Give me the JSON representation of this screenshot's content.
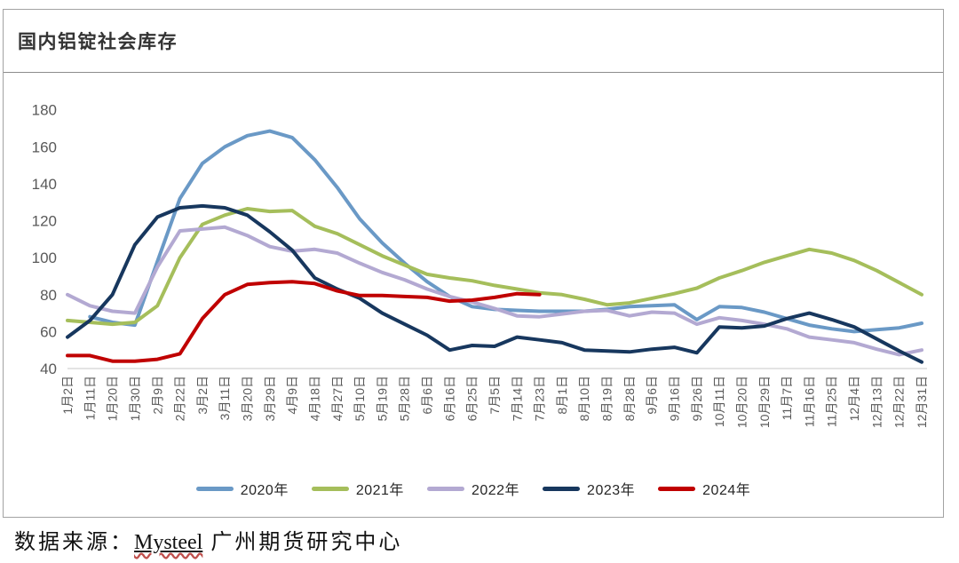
{
  "header": {
    "title": "国内铝锭社会库存"
  },
  "footer": {
    "prefix": "数据来源：",
    "source_link": "Mysteel",
    "suffix": " 广州期货研究中心"
  },
  "chart_data": {
    "type": "line",
    "title": "国内铝锭社会库存",
    "xlabel": "",
    "ylabel": "",
    "ylim": [
      40,
      180
    ],
    "y_ticks": [
      40,
      60,
      80,
      100,
      120,
      140,
      160,
      180
    ],
    "grid": "baseline-only",
    "legend_position": "bottom",
    "axis_text_color": "#595959",
    "baseline_color": "#c9c9c9",
    "categories": [
      "1月2日",
      "1月11日",
      "1月20日",
      "1月30日",
      "2月9日",
      "2月22日",
      "3月2日",
      "3月11日",
      "3月20日",
      "3月29日",
      "4月9日",
      "4月18日",
      "4月27日",
      "5月10日",
      "5月19日",
      "5月28日",
      "6月6日",
      "6月16日",
      "6月25日",
      "7月5日",
      "7月14日",
      "7月23日",
      "8月1日",
      "8月10日",
      "8月19日",
      "8月28日",
      "9月6日",
      "9月16日",
      "9月26日",
      "10月11日",
      "10月20日",
      "10月29日",
      "11月7日",
      "11月16日",
      "11月25日",
      "12月4日",
      "12月13日",
      "12月22日",
      "12月31日"
    ],
    "series": [
      {
        "name": "2020年",
        "color": "#6A99C6",
        "values": [
          null,
          68,
          65,
          63.5,
          98,
          132,
          151,
          160,
          166,
          168.5,
          165,
          153,
          138,
          121,
          108,
          97,
          87,
          79,
          73.5,
          72,
          71.5,
          71,
          71,
          71,
          72,
          73.5,
          74,
          74.5,
          66.5,
          73.5,
          73,
          70.5,
          67,
          63.5,
          61.5,
          60,
          61,
          62,
          64.5
        ]
      },
      {
        "name": "2021年",
        "color": "#A5BE5B",
        "values": [
          66,
          65,
          64,
          65,
          74,
          100,
          118,
          123,
          126.5,
          125,
          125.5,
          117,
          113,
          107,
          101,
          96,
          91,
          89,
          87.5,
          85,
          83,
          81,
          80,
          77.5,
          74.5,
          75.5,
          78,
          80.5,
          83.5,
          89,
          93,
          97.5,
          101,
          104.5,
          102.5,
          98.5,
          93,
          86.5,
          80
        ]
      },
      {
        "name": "2022年",
        "color": "#B3A9D2",
        "values": [
          80,
          74,
          71,
          70,
          95,
          114.5,
          115.5,
          116.5,
          112,
          106,
          103.5,
          104.5,
          102.5,
          97,
          92,
          88,
          83,
          79,
          76,
          72.5,
          68.5,
          68,
          69.5,
          71,
          71.5,
          68.5,
          70.5,
          70,
          64,
          67.5,
          66,
          64,
          61.5,
          57,
          55.5,
          54,
          50.5,
          47.5,
          50
        ]
      },
      {
        "name": "2023年",
        "color": "#17375E",
        "values": [
          57,
          66,
          80,
          107,
          122,
          127,
          128,
          127,
          123,
          114,
          104,
          89,
          83,
          78,
          70,
          64,
          58,
          50,
          52.5,
          52,
          57,
          55.5,
          54,
          50,
          49.5,
          49,
          50.5,
          51.5,
          48.5,
          62.5,
          62,
          63,
          67,
          70,
          66.5,
          62.5,
          56,
          49.5,
          43.5
        ]
      },
      {
        "name": "2024年",
        "color": "#C00000",
        "values": [
          47,
          47,
          44,
          44,
          45,
          48,
          67,
          80,
          85.5,
          86.5,
          87,
          86,
          82,
          79.5,
          79.5,
          79,
          78.5,
          76.5,
          77,
          78.5,
          80.5,
          80,
          null,
          null,
          null,
          null,
          null,
          null,
          null,
          null,
          null,
          null,
          null,
          null,
          null,
          null,
          null,
          null,
          null
        ]
      }
    ]
  }
}
